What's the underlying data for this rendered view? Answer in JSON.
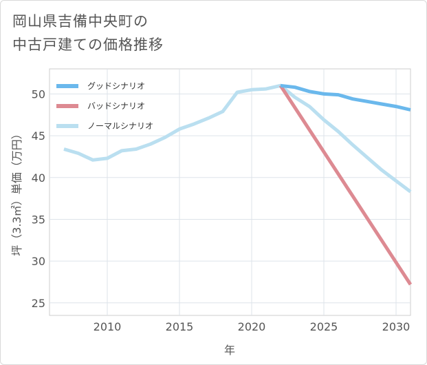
{
  "title_lines": [
    "岡山県吉備中央町の",
    "中古戸建ての価格推移"
  ],
  "chart_data": {
    "type": "line",
    "xlabel": "年",
    "ylabel": "坪（3.3㎡）単価（万円）",
    "xlim": [
      2006,
      2031
    ],
    "ylim": [
      23.5,
      53
    ],
    "x_ticks": [
      2010,
      2015,
      2020,
      2025,
      2030
    ],
    "y_ticks": [
      25,
      30,
      35,
      40,
      45,
      50
    ],
    "grid": true,
    "legend_position": "top-left",
    "series": [
      {
        "name": "グッドシナリオ",
        "color": "#6ab8ec",
        "points": [
          [
            2022,
            51.0
          ],
          [
            2023,
            50.8
          ],
          [
            2024,
            50.3
          ],
          [
            2025,
            50.0
          ],
          [
            2026,
            49.9
          ],
          [
            2027,
            49.4
          ],
          [
            2028,
            49.1
          ],
          [
            2029,
            48.8
          ],
          [
            2030,
            48.5
          ],
          [
            2031,
            48.1
          ]
        ]
      },
      {
        "name": "バッドシナリオ",
        "color": "#dd8a92",
        "points": [
          [
            2022,
            51.0
          ],
          [
            2031,
            27.2
          ]
        ]
      },
      {
        "name": "ノーマルシナリオ",
        "color": "#badff0",
        "points": [
          [
            2007,
            43.4
          ],
          [
            2008,
            42.9
          ],
          [
            2009,
            42.1
          ],
          [
            2010,
            42.3
          ],
          [
            2011,
            43.2
          ],
          [
            2012,
            43.4
          ],
          [
            2013,
            44.0
          ],
          [
            2014,
            44.8
          ],
          [
            2015,
            45.8
          ],
          [
            2016,
            46.4
          ],
          [
            2017,
            47.1
          ],
          [
            2018,
            47.9
          ],
          [
            2019,
            50.2
          ],
          [
            2020,
            50.5
          ],
          [
            2021,
            50.6
          ],
          [
            2022,
            51.0
          ],
          [
            2023,
            49.6
          ],
          [
            2024,
            48.5
          ],
          [
            2025,
            46.9
          ],
          [
            2026,
            45.5
          ],
          [
            2027,
            43.9
          ],
          [
            2028,
            42.4
          ],
          [
            2029,
            40.9
          ],
          [
            2030,
            39.6
          ],
          [
            2031,
            38.3
          ]
        ]
      }
    ]
  }
}
